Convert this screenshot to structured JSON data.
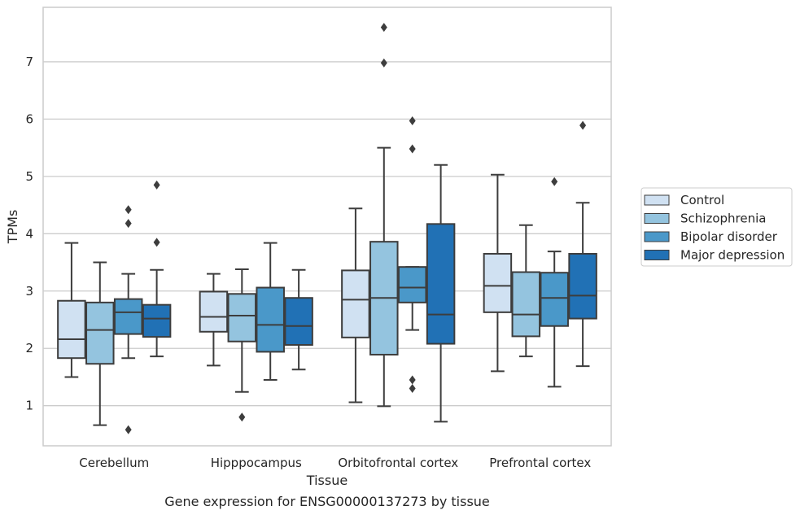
{
  "chart_data": {
    "type": "box",
    "title": "",
    "caption": "Gene expression for ENSG00000137273 by tissue",
    "xlabel": "Tissue",
    "ylabel": "TPMs",
    "ylim": [
      0.3,
      7.95
    ],
    "yticks": [
      1,
      2,
      3,
      4,
      5,
      6,
      7
    ],
    "grid": "horizontal",
    "legend_position": "right",
    "categories": [
      "Cerebellum",
      "Hipppocampus",
      "Orbitofrontal cortex",
      "Prefrontal cortex"
    ],
    "series": [
      {
        "name": "Control",
        "color": "#d0e1f2",
        "boxes": [
          {
            "whislo": 1.5,
            "q1": 1.83,
            "med": 2.16,
            "q3": 2.83,
            "whishi": 3.84,
            "fliers": []
          },
          {
            "whislo": 1.7,
            "q1": 2.29,
            "med": 2.55,
            "q3": 2.99,
            "whishi": 3.3,
            "fliers": []
          },
          {
            "whislo": 1.06,
            "q1": 2.19,
            "med": 2.85,
            "q3": 3.36,
            "whishi": 4.44,
            "fliers": []
          },
          {
            "whislo": 1.6,
            "q1": 2.63,
            "med": 3.09,
            "q3": 3.65,
            "whishi": 5.03,
            "fliers": []
          }
        ]
      },
      {
        "name": "Schizophrenia",
        "color": "#94c4df",
        "boxes": [
          {
            "whislo": 0.66,
            "q1": 1.73,
            "med": 2.32,
            "q3": 2.8,
            "whishi": 3.5,
            "fliers": []
          },
          {
            "whislo": 1.24,
            "q1": 2.12,
            "med": 2.57,
            "q3": 2.95,
            "whishi": 3.38,
            "fliers": [
              0.8
            ]
          },
          {
            "whislo": 0.99,
            "q1": 1.89,
            "med": 2.88,
            "q3": 3.86,
            "whishi": 5.5,
            "fliers": [
              6.98,
              7.6
            ]
          },
          {
            "whislo": 1.86,
            "q1": 2.21,
            "med": 2.59,
            "q3": 3.33,
            "whishi": 4.15,
            "fliers": []
          }
        ]
      },
      {
        "name": "Bipolar disorder",
        "color": "#4a98c9",
        "boxes": [
          {
            "whislo": 1.83,
            "q1": 2.25,
            "med": 2.63,
            "q3": 2.86,
            "whishi": 3.3,
            "fliers": [
              0.58,
              4.18,
              4.42
            ]
          },
          {
            "whislo": 1.45,
            "q1": 1.94,
            "med": 2.41,
            "q3": 3.06,
            "whishi": 3.84,
            "fliers": []
          },
          {
            "whislo": 2.32,
            "q1": 2.8,
            "med": 3.06,
            "q3": 3.42,
            "whishi": 3.42,
            "fliers": [
              1.3,
              1.45,
              5.48,
              5.97
            ]
          },
          {
            "whislo": 1.33,
            "q1": 2.39,
            "med": 2.88,
            "q3": 3.32,
            "whishi": 3.69,
            "fliers": [
              4.91
            ]
          }
        ]
      },
      {
        "name": "Major depression",
        "color": "#2171b5",
        "boxes": [
          {
            "whislo": 1.86,
            "q1": 2.2,
            "med": 2.52,
            "q3": 2.76,
            "whishi": 3.37,
            "fliers": [
              3.85,
              4.85
            ]
          },
          {
            "whislo": 1.63,
            "q1": 2.06,
            "med": 2.39,
            "q3": 2.88,
            "whishi": 3.37,
            "fliers": []
          },
          {
            "whislo": 0.72,
            "q1": 2.08,
            "med": 2.59,
            "q3": 4.17,
            "whishi": 5.2,
            "fliers": []
          },
          {
            "whislo": 1.69,
            "q1": 2.52,
            "med": 2.92,
            "q3": 3.65,
            "whishi": 4.54,
            "fliers": [
              5.89
            ]
          }
        ]
      }
    ]
  },
  "colors": {
    "grid": "#cccccc",
    "spine": "#cccccc",
    "edge": "#3d3d3d"
  }
}
